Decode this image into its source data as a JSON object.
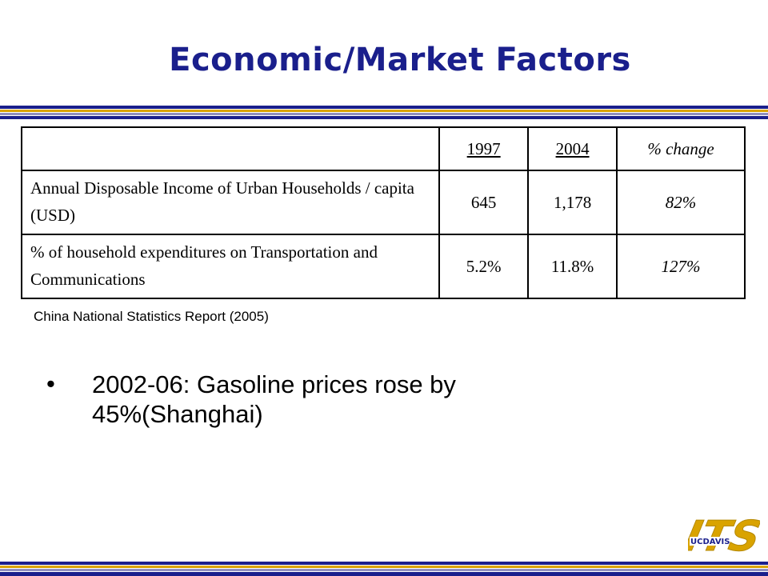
{
  "slide": {
    "title": "Economic/Market Factors",
    "source": "China National Statistics Report (2005)",
    "bullet": "2002-06: Gasoline prices rose by 45%(Shanghai)"
  },
  "table": {
    "headers": [
      "",
      "1997",
      "2004",
      "% change"
    ],
    "rows": [
      [
        "Annual Disposable Income of Urban Households / capita (USD)",
        "645",
        "1,178",
        "82%"
      ],
      [
        "% of household expenditures on Transportation and Communications",
        "5.2%",
        "11.8%",
        "127%"
      ]
    ]
  },
  "logo": {
    "ucdavis_text": "UCDAVIS",
    "its_text": "ITS"
  },
  "colors": {
    "title": "#1a1f8c",
    "stripe_navy": "#1a1f8c",
    "stripe_gold": "#d9a300",
    "stripe_lavender": "#8f8fbf",
    "logo_gold": "#d9a300",
    "logo_navy": "#1a1f8c"
  }
}
